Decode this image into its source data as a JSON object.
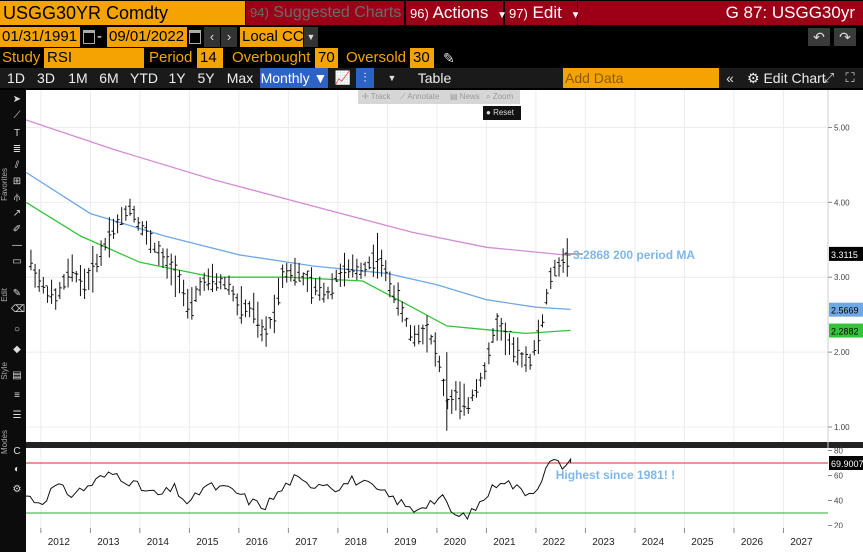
{
  "title_bar": {
    "ticker": "USGG30YR Comdty",
    "suggested_num": "94)",
    "suggested_label": "Suggested Charts",
    "actions_num": "96)",
    "actions_label": "Actions",
    "edit_num": "97)",
    "edit_label": "Edit",
    "screen_title": "G 87: USGG30yr"
  },
  "date_row": {
    "start_date": "01/31/1991",
    "separator": "-",
    "end_date": "09/01/2022",
    "currency": "Local CCY"
  },
  "study_row": {
    "study_label": "Study",
    "study_value": "RSI",
    "period_label": "Period",
    "period_value": "14",
    "overbought_label": "Overbought",
    "overbought_value": "70",
    "oversold_label": "Oversold",
    "oversold_value": "30"
  },
  "toolbar": {
    "periods": [
      "1D",
      "3D",
      "1M",
      "6M",
      "YTD",
      "1Y",
      "5Y",
      "Max"
    ],
    "frequency": "Monthly",
    "table_label": "Table",
    "add_data_placeholder": "Add Data",
    "edit_chart_label": "Edit Chart"
  },
  "side_rail": {
    "tabs": [
      "Favorites",
      "Edit",
      "Style",
      "Modes"
    ]
  },
  "float_toolbar": {
    "items": [
      "Track",
      "Annotate",
      "News",
      "Zoom"
    ],
    "reset_label": "Reset"
  },
  "icons": [
    "undo-icon",
    "redo-icon",
    "calendar-icon",
    "pencil-icon",
    "line-chart-icon",
    "bar-chart-icon",
    "double-chevron-left-icon",
    "gear-icon",
    "expand-icon",
    "fullscreen-icon"
  ],
  "colors": {
    "accent_orange": "#f5a300",
    "title_red": "#9b0016",
    "ma200": "#d48bd8",
    "ma100": "#6fa8e6",
    "ma50": "#34c43a",
    "annotation_blue": "#7fb7ea",
    "overbought_line": "#d62b2b",
    "oversold_line": "#2faa2f"
  },
  "annotations": {
    "ma_label": "3.2868 200 period MA",
    "rsi_label": "Highest since 1981! !"
  },
  "chart_data": [
    {
      "type": "ohlc",
      "name": "USGG30YR monthly price",
      "x_tick_labels": [
        "2012",
        "2013",
        "2014",
        "2015",
        "2016",
        "2017",
        "2018",
        "2019",
        "2020",
        "2021",
        "2022",
        "2023",
        "2024",
        "2025",
        "2026",
        "2027"
      ],
      "y_tick_labels": [
        "1.00",
        "2.00",
        "3.00",
        "4.00",
        "5.00"
      ],
      "ylim": [
        0.8,
        5.5
      ],
      "x_range": [
        2011.7,
        2027.9
      ],
      "last_value_badges": [
        {
          "value": "3.3115",
          "color": "#ffffff"
        },
        {
          "value": "2.5669",
          "color": "#6fa8e6"
        },
        {
          "value": "2.2882",
          "color": "#34c43a"
        }
      ],
      "price_x": [
        2011.8,
        2012.0,
        2012.3,
        2012.6,
        2012.9,
        2013.2,
        2013.4,
        2013.6,
        2013.8,
        2014.0,
        2014.3,
        2014.5,
        2014.8,
        2015.0,
        2015.2,
        2015.5,
        2015.8,
        2016.0,
        2016.3,
        2016.5,
        2016.7,
        2016.9,
        2017.2,
        2017.5,
        2017.8,
        2018.0,
        2018.3,
        2018.5,
        2018.8,
        2019.0,
        2019.2,
        2019.5,
        2019.8,
        2020.0,
        2020.2,
        2020.4,
        2020.6,
        2020.8,
        2021.0,
        2021.2,
        2021.4,
        2021.6,
        2021.9,
        2022.1,
        2022.3,
        2022.5,
        2022.7
      ],
      "price_y": [
        3.2,
        2.9,
        2.7,
        3.1,
        2.9,
        3.3,
        3.6,
        3.75,
        3.95,
        3.7,
        3.4,
        3.2,
        3.0,
        2.5,
        2.9,
        2.95,
        2.9,
        2.6,
        2.55,
        2.2,
        2.5,
        3.1,
        3.05,
        2.85,
        2.8,
        3.05,
        3.1,
        3.1,
        3.3,
        3.0,
        2.7,
        2.2,
        2.3,
        2.0,
        1.3,
        1.4,
        1.25,
        1.55,
        1.8,
        2.4,
        2.2,
        1.95,
        1.9,
        2.3,
        3.0,
        3.2,
        3.3
      ],
      "ma200_x": [
        2011.7,
        2013.5,
        2015.5,
        2017.5,
        2019.5,
        2021.0,
        2022.7
      ],
      "ma200_y": [
        5.1,
        4.7,
        4.3,
        3.95,
        3.6,
        3.4,
        3.29
      ],
      "ma100_x": [
        2011.7,
        2013.0,
        2014.5,
        2016.0,
        2017.5,
        2019.0,
        2020.0,
        2021.0,
        2022.0,
        2022.7
      ],
      "ma100_y": [
        4.4,
        3.85,
        3.55,
        3.3,
        3.15,
        3.05,
        2.9,
        2.7,
        2.6,
        2.57
      ],
      "ma50_x": [
        2011.7,
        2012.8,
        2014.0,
        2015.5,
        2017.0,
        2018.5,
        2019.5,
        2020.2,
        2021.0,
        2021.8,
        2022.7
      ],
      "ma50_y": [
        4.0,
        3.55,
        3.2,
        3.0,
        3.0,
        2.95,
        2.6,
        2.35,
        2.3,
        2.25,
        2.29
      ]
    },
    {
      "type": "line",
      "name": "RSI",
      "y_tick_labels": [
        "20",
        "40",
        "60",
        "80"
      ],
      "ylim": [
        18,
        82
      ],
      "overbought": 70,
      "oversold": 30,
      "last_value": "69.9007",
      "rsi_x": [
        2011.7,
        2012.0,
        2012.3,
        2012.6,
        2012.9,
        2013.2,
        2013.5,
        2013.8,
        2014.1,
        2014.4,
        2014.7,
        2015.0,
        2015.3,
        2015.6,
        2015.9,
        2016.2,
        2016.5,
        2016.8,
        2017.1,
        2017.4,
        2017.7,
        2018.0,
        2018.3,
        2018.6,
        2018.9,
        2019.2,
        2019.5,
        2019.8,
        2020.1,
        2020.4,
        2020.7,
        2021.0,
        2021.3,
        2021.6,
        2021.9,
        2022.1,
        2022.3,
        2022.5,
        2022.7
      ],
      "rsi_y": [
        44,
        38,
        52,
        45,
        50,
        58,
        62,
        55,
        48,
        44,
        50,
        36,
        52,
        50,
        48,
        40,
        35,
        46,
        58,
        52,
        55,
        50,
        57,
        52,
        46,
        40,
        32,
        38,
        42,
        26,
        30,
        44,
        58,
        50,
        46,
        56,
        72,
        68,
        70
      ]
    }
  ]
}
